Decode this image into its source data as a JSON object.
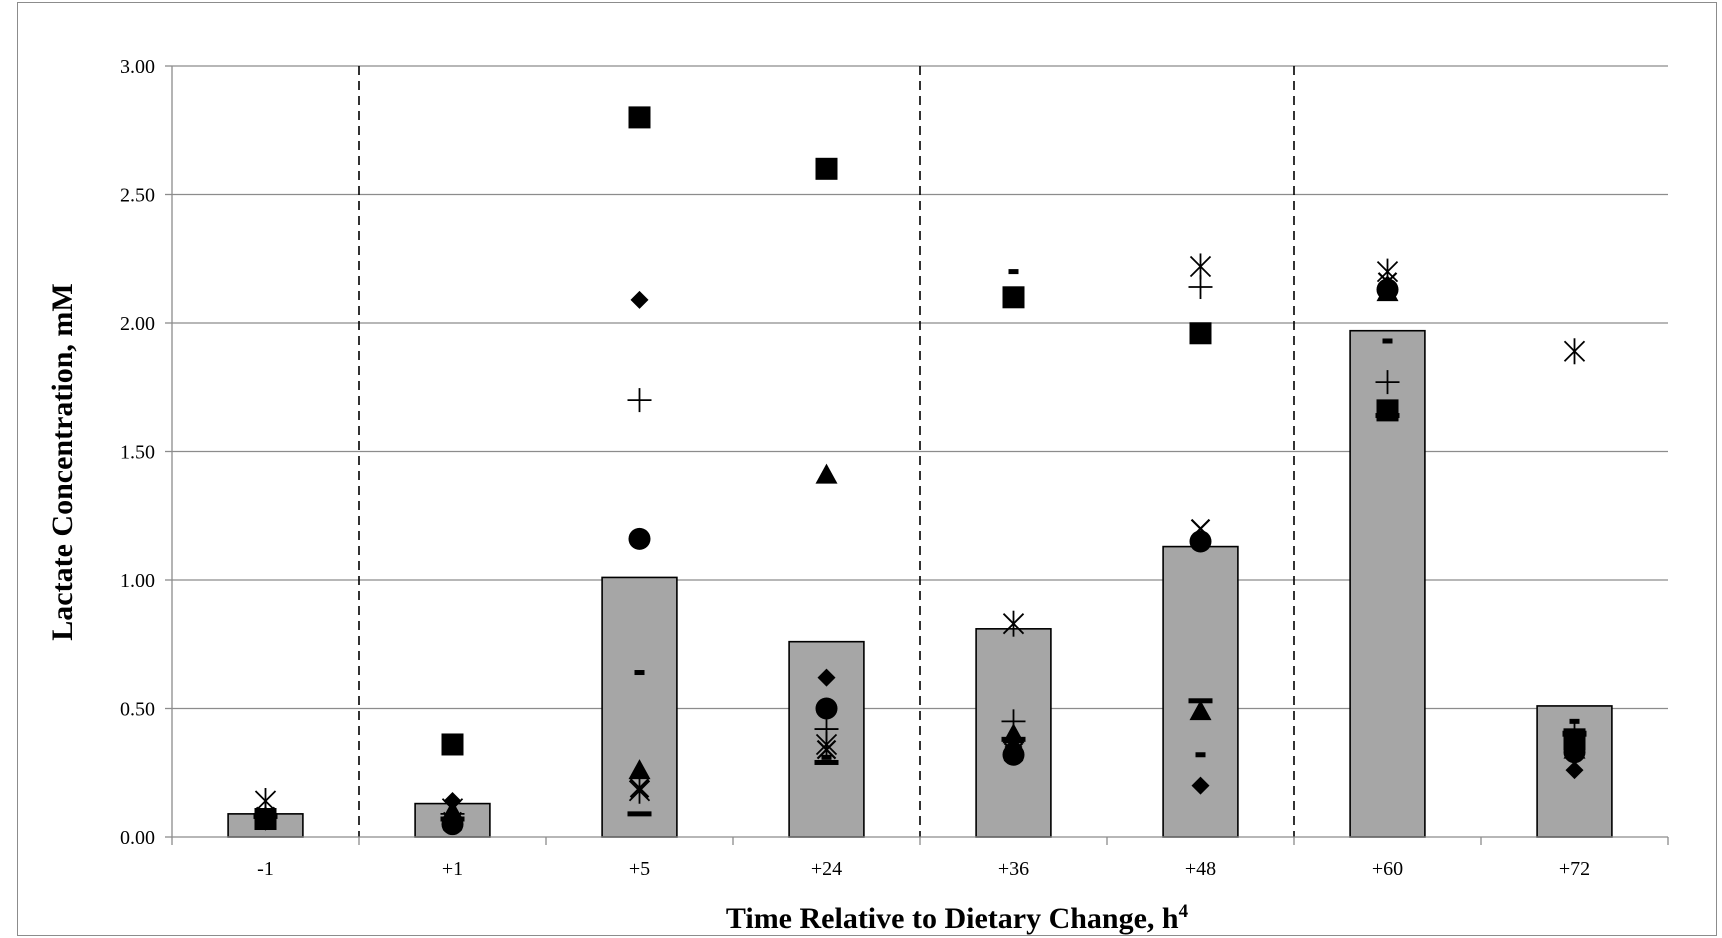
{
  "chart_data": {
    "type": "bar",
    "title": "",
    "xlabel": "Time Relative to Dietary Change, h",
    "xlabel_superscript": "4",
    "ylabel": "Lactate Concentration, mM",
    "ylim": [
      0,
      3
    ],
    "yticks": [
      "0.00",
      "0.50",
      "1.00",
      "1.50",
      "2.00",
      "2.50",
      "3.00"
    ],
    "grid": "horizontal",
    "categories": [
      "-1",
      "+1",
      "+5",
      "+24",
      "+36",
      "+48",
      "+60",
      "+72"
    ],
    "bar_color": "#a6a6a6",
    "values": [
      0.09,
      0.13,
      1.01,
      0.76,
      0.81,
      1.13,
      1.97,
      0.51
    ],
    "dividers_after_category": [
      0,
      3,
      5
    ],
    "series": [
      {
        "marker": "square",
        "values": [
          0.07,
          0.36,
          2.8,
          2.6,
          2.1,
          1.96,
          1.66,
          0.38
        ]
      },
      {
        "marker": "diamond",
        "values": [
          0.06,
          0.14,
          2.09,
          0.62,
          0.35,
          0.2,
          2.15,
          0.26
        ]
      },
      {
        "marker": "triangle",
        "values": [
          0.08,
          0.1,
          0.26,
          1.41,
          0.4,
          0.49,
          2.12,
          0.34
        ]
      },
      {
        "marker": "circle",
        "values": [
          0.07,
          0.05,
          1.16,
          0.5,
          0.32,
          1.15,
          2.13,
          0.33
        ]
      },
      {
        "marker": "x",
        "values": [
          0.08,
          0.06,
          0.19,
          0.34,
          0.33,
          1.2,
          2.16,
          0.35
        ]
      },
      {
        "marker": "star",
        "values": [
          0.14,
          0.11,
          0.18,
          0.36,
          0.83,
          2.22,
          2.2,
          1.89
        ]
      },
      {
        "marker": "plus",
        "values": [
          0.09,
          0.09,
          1.7,
          0.42,
          0.45,
          2.14,
          1.77,
          0.41
        ]
      },
      {
        "marker": "dash",
        "values": [
          0.08,
          0.07,
          0.64,
          0.31,
          2.2,
          0.32,
          1.93,
          0.45
        ]
      },
      {
        "marker": "long-dash",
        "values": [
          0.08,
          0.07,
          0.09,
          0.29,
          0.38,
          0.53,
          1.64,
          0.4
        ]
      }
    ]
  }
}
